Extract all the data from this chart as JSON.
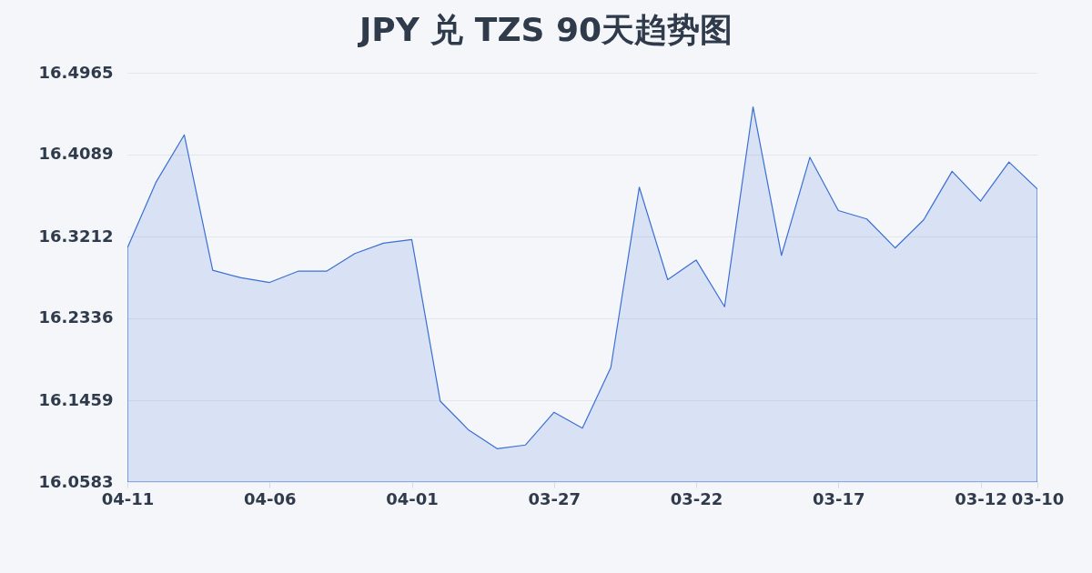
{
  "chart_data": {
    "type": "area",
    "title": "JPY 兑 TZS 90天趋势图",
    "categories": [
      "04-11",
      null,
      null,
      null,
      null,
      "04-06",
      null,
      null,
      null,
      null,
      "04-01",
      null,
      null,
      null,
      null,
      "03-27",
      null,
      null,
      null,
      null,
      "03-22",
      null,
      null,
      null,
      null,
      "03-17",
      null,
      null,
      null,
      null,
      "03-12",
      null,
      "03-10"
    ],
    "series": [
      {
        "color": "#3b6fd4",
        "values": [
          16.309,
          16.379,
          16.43,
          16.285,
          16.277,
          16.272,
          16.284,
          16.284,
          16.303,
          16.314,
          16.318,
          16.145,
          16.114,
          16.094,
          16.098,
          16.133,
          16.116,
          16.181,
          16.374,
          16.275,
          16.296,
          16.246,
          16.46,
          16.301,
          16.406,
          16.349,
          16.34,
          16.309,
          16.339,
          16.391,
          16.359,
          16.401,
          16.372
        ]
      }
    ],
    "ylim": [
      16.0583,
      16.4965
    ],
    "yticks": [
      16.0583,
      16.1459,
      16.2336,
      16.3212,
      16.4089,
      16.4965
    ],
    "grid": "y"
  }
}
